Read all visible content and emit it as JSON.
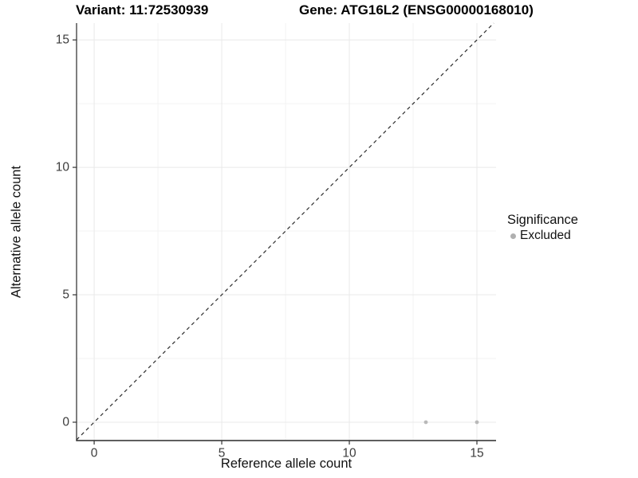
{
  "window": {
    "background": "#ffffff"
  },
  "chart_data": {
    "type": "scatter",
    "title_left": "Variant: 11:72530939",
    "title_right": "Gene: ATG16L2 (ENSG00000168010)",
    "xlabel": "Reference allele count",
    "ylabel": "Alternative allele count",
    "xlim": [
      -0.69,
      15.75
    ],
    "ylim": [
      -0.72,
      15.66
    ],
    "x_ticks": [
      0,
      5,
      10,
      15
    ],
    "y_ticks": [
      0,
      5,
      10,
      15
    ],
    "x_minor_gridlines": [
      2.5,
      7.5,
      12.5
    ],
    "y_minor_gridlines": [
      2.5,
      7.5,
      12.5
    ],
    "grid": true,
    "legend_position": "right",
    "reference_line": {
      "kind": "identity",
      "slope": 1,
      "intercept": 0,
      "style": "dashed"
    },
    "series": [
      {
        "name": "Excluded",
        "color": "#b9b9b9",
        "points": [
          {
            "x": 13,
            "y": 0
          },
          {
            "x": 15,
            "y": 0
          }
        ]
      }
    ],
    "legend": {
      "title": "Significance",
      "items": [
        {
          "label": "Excluded",
          "color": "#b0b0b0"
        }
      ]
    },
    "colors": {
      "grid_major": "#e9e9e9",
      "grid_minor": "#f3f3f3",
      "axis_line": "#2a2a2a",
      "tick": "#333333",
      "tick_label": "#3c3c3c",
      "reference_line": "#2b2b2b",
      "title": "#000000"
    }
  }
}
